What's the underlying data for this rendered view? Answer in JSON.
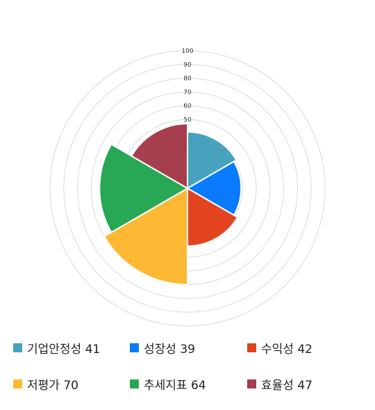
{
  "chart_data": {
    "type": "polar-area",
    "title": "",
    "rlim": [
      0,
      100
    ],
    "rticks": [
      50,
      60,
      70,
      80,
      90,
      100
    ],
    "grid": true,
    "legend": "bottom",
    "categories": [
      "기업안정성",
      "성장성",
      "수익성",
      "저평가",
      "추세지표",
      "효율성"
    ],
    "values": [
      41,
      39,
      42,
      70,
      64,
      47
    ],
    "colors": [
      "#48A2BE",
      "#0A7BFF",
      "#E2441F",
      "#FDB934",
      "#28A855",
      "#A63E4E"
    ]
  },
  "legend_items": [
    {
      "label": "기업안정성 41",
      "color": "#48A2BE"
    },
    {
      "label": "성장성 39",
      "color": "#0A7BFF"
    },
    {
      "label": "수익성 42",
      "color": "#E2441F"
    },
    {
      "label": "저평가 70",
      "color": "#FDB934"
    },
    {
      "label": "추세지표 64",
      "color": "#28A855"
    },
    {
      "label": "효율성 47",
      "color": "#A63E4E"
    }
  ]
}
